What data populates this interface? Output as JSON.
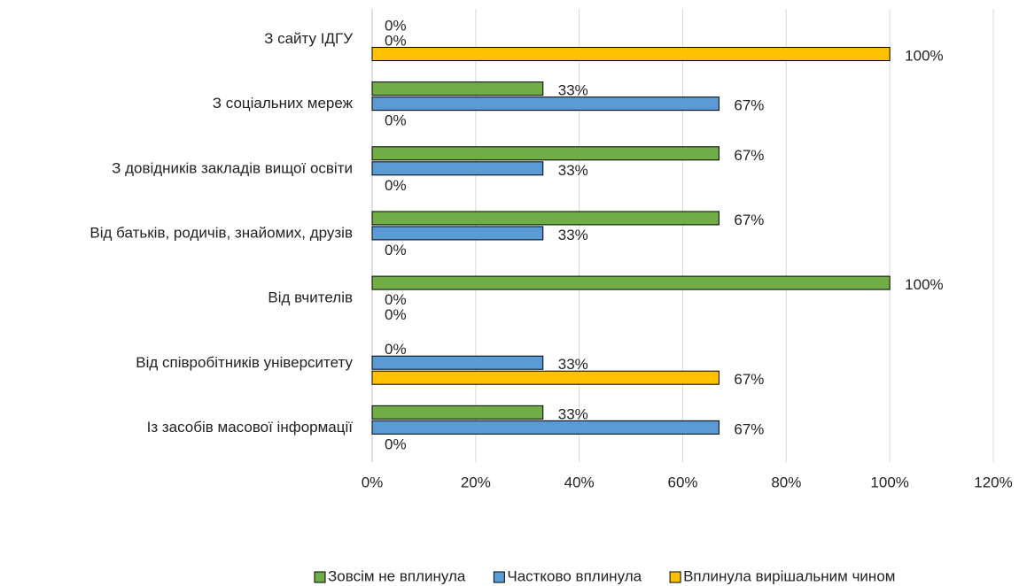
{
  "chart_data": {
    "type": "bar",
    "orientation": "horizontal",
    "categories": [
      "З сайту ІДГУ",
      "З соціальних мереж",
      "З довідників закладів вищої освіти",
      "Від батьків, родичів, знайомих, друзів",
      "Від вчителів",
      "Від співробітників університету",
      "Із засобів масової інформації"
    ],
    "series": [
      {
        "name": "Зовсім не вплинула",
        "color": "#70ad47",
        "values": [
          0,
          33,
          67,
          67,
          100,
          0,
          33
        ],
        "value_labels": [
          "0%",
          "33%",
          "67%",
          "67%",
          "100%",
          "0%",
          "33%"
        ]
      },
      {
        "name": "Частково вплинула",
        "color": "#5b9bd5",
        "values": [
          0,
          67,
          33,
          33,
          0,
          33,
          67
        ],
        "value_labels": [
          "0%",
          "67%",
          "33%",
          "33%",
          "0%",
          "33%",
          "67%"
        ]
      },
      {
        "name": "Вплинула вирішальним чином",
        "color": "#ffc000",
        "values": [
          100,
          0,
          0,
          0,
          0,
          67,
          0
        ],
        "value_labels": [
          "100%",
          "0%",
          "0%",
          "0%",
          "0%",
          "67%",
          "0%"
        ]
      }
    ],
    "xlim": [
      0,
      120
    ],
    "xticks": [
      {
        "value": 0,
        "label": "0%"
      },
      {
        "value": 20,
        "label": "20%"
      },
      {
        "value": 40,
        "label": "40%"
      },
      {
        "value": 60,
        "label": "60%"
      },
      {
        "value": 80,
        "label": "80%"
      },
      {
        "value": 100,
        "label": "100%"
      },
      {
        "value": 120,
        "label": "120%"
      }
    ],
    "grid": true,
    "legend": "bottom"
  }
}
